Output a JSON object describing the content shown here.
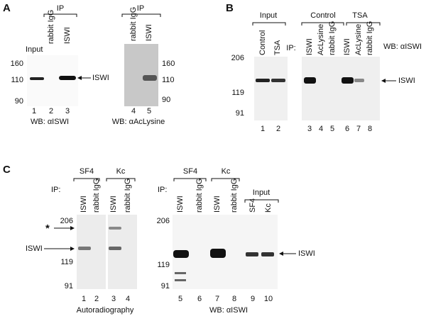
{
  "panel_a": {
    "label": "A",
    "left": {
      "ip_header": "IP",
      "lanes": [
        "Input",
        "rabbit IgG",
        "ISWI"
      ],
      "markers": [
        160,
        110,
        90
      ],
      "band_label": "ISWI",
      "lane_numbers": [
        1,
        2,
        3
      ],
      "western_blot": "WB: αISWI"
    },
    "right": {
      "ip_header": "IP",
      "lanes": [
        "rabbit IgG",
        "ISWI"
      ],
      "markers": [
        160,
        110,
        90
      ],
      "lane_numbers": [
        4,
        5
      ],
      "western_blot": "WB: αAcLysine"
    }
  },
  "panel_b": {
    "label": "B",
    "input": {
      "header": "Input",
      "lanes": [
        "Control",
        "TSA"
      ],
      "markers": [
        206,
        119,
        91
      ],
      "lane_numbers": [
        1,
        2
      ]
    },
    "ip": {
      "groups": [
        "Control",
        "TSA"
      ],
      "ip_label": "IP:",
      "lanes": [
        "ISWI",
        "AcLysine",
        "rabbit IgG",
        "ISWI",
        "AcLysine",
        "rabbit IgG"
      ],
      "lane_numbers": [
        3,
        4,
        5,
        6,
        7,
        8
      ],
      "western_blot": "WB: αISWI",
      "band_label": "ISWI"
    }
  },
  "panel_c": {
    "label": "C",
    "left": {
      "groups": [
        "SF4",
        "Kc"
      ],
      "ip_label": "IP:",
      "lanes": [
        "ISWI",
        "rabbit IgG",
        "ISWI",
        "rabbit IgG"
      ],
      "markers": [
        206,
        119,
        91
      ],
      "star": "*",
      "band_label": "ISWI",
      "lane_numbers": [
        1,
        2,
        3,
        4
      ],
      "caption": "Autoradiography"
    },
    "right": {
      "groups": [
        "SF4",
        "Kc",
        "Input"
      ],
      "ip_label": "IP:",
      "lanes": [
        "ISWI",
        "rabbit IgG",
        "ISWI",
        "rabbit IgG",
        "SF4",
        "Kc"
      ],
      "markers": [
        206,
        119,
        91
      ],
      "band_label": "ISWI",
      "lane_numbers": [
        5,
        6,
        7,
        8,
        9,
        10
      ],
      "western_blot": "WB: αISWI"
    }
  }
}
